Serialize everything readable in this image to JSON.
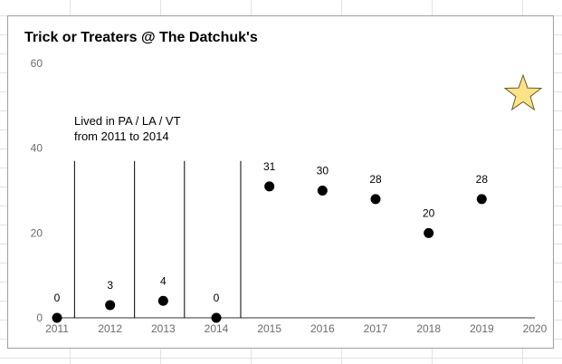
{
  "chart_data": {
    "type": "scatter",
    "title": "Trick or Treaters @ The Datchuk's",
    "x": [
      2011,
      2012,
      2013,
      2014,
      2015,
      2016,
      2017,
      2018,
      2019
    ],
    "y": [
      0,
      3,
      4,
      0,
      31,
      30,
      28,
      20,
      28
    ],
    "data_labels": [
      "0",
      "3",
      "4",
      "0",
      "31",
      "30",
      "28",
      "20",
      "28"
    ],
    "x_ticks": [
      "2011",
      "2012",
      "2013",
      "2014",
      "2015",
      "2016",
      "2017",
      "2018",
      "2019",
      "2020"
    ],
    "y_ticks": [
      "0",
      "20",
      "40",
      "60"
    ],
    "xlim": [
      2011,
      2020
    ],
    "ylim": [
      0,
      60
    ],
    "grid": false,
    "point_color": "#000000",
    "annotation": [
      "Lived in PA / LA / VT",
      "from 2011 to 2014"
    ],
    "separator_years": [
      2011.33,
      2012.46,
      2013.4,
      2014.46
    ],
    "separator_top_value": 37,
    "star_color": "#fce38a"
  }
}
